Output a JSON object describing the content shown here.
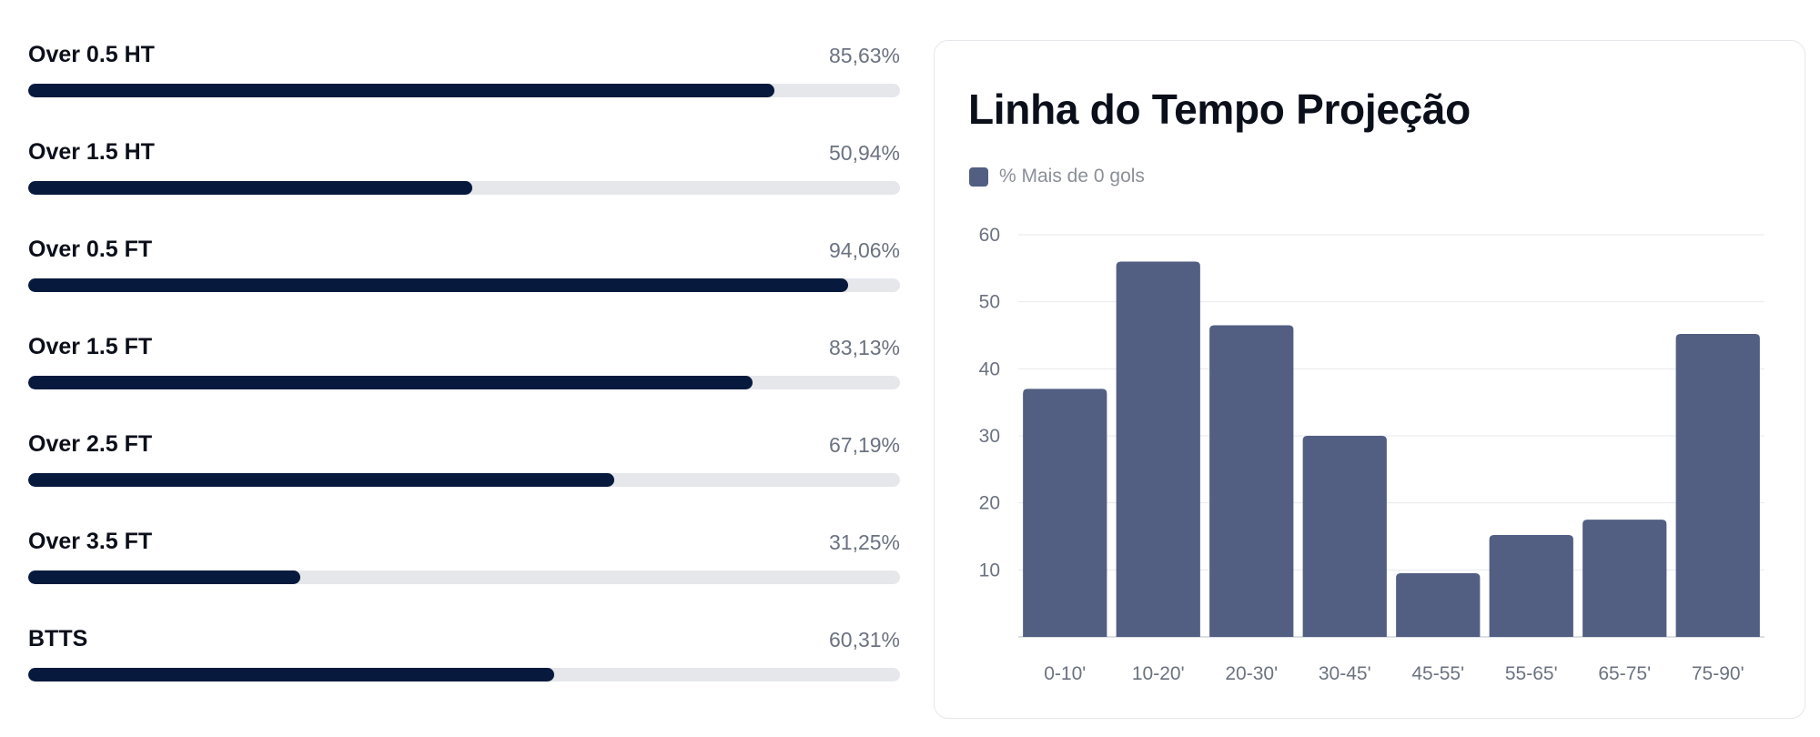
{
  "stats": [
    {
      "label": "Over 0.5 HT",
      "value_text": "85,63%",
      "percent": 85.63
    },
    {
      "label": "Over 1.5 HT",
      "value_text": "50,94%",
      "percent": 50.94
    },
    {
      "label": "Over 0.5 FT",
      "value_text": "94,06%",
      "percent": 94.06
    },
    {
      "label": "Over 1.5 FT",
      "value_text": "83,13%",
      "percent": 83.13
    },
    {
      "label": "Over 2.5 FT",
      "value_text": "67,19%",
      "percent": 67.19
    },
    {
      "label": "Over 3.5 FT",
      "value_text": "31,25%",
      "percent": 31.25
    },
    {
      "label": "BTTS",
      "value_text": "60,31%",
      "percent": 60.31
    }
  ],
  "colors": {
    "progress_fill": "#071a3d",
    "progress_track": "#e5e7eb",
    "bar": "#525e82"
  },
  "chart_data": {
    "type": "bar",
    "title": "Linha do Tempo Projeção",
    "categories": [
      "0-10'",
      "10-20'",
      "20-30'",
      "30-45'",
      "45-55'",
      "55-65'",
      "65-75'",
      "75-90'"
    ],
    "series": [
      {
        "name": "% Mais de 0 gols",
        "values": [
          37,
          56,
          46.5,
          30,
          9.5,
          15.2,
          17.5,
          45.2
        ]
      }
    ],
    "yticks": [
      10,
      20,
      30,
      40,
      50,
      60
    ],
    "ylim": [
      0,
      60
    ],
    "grid": true,
    "legend": "top-left"
  }
}
